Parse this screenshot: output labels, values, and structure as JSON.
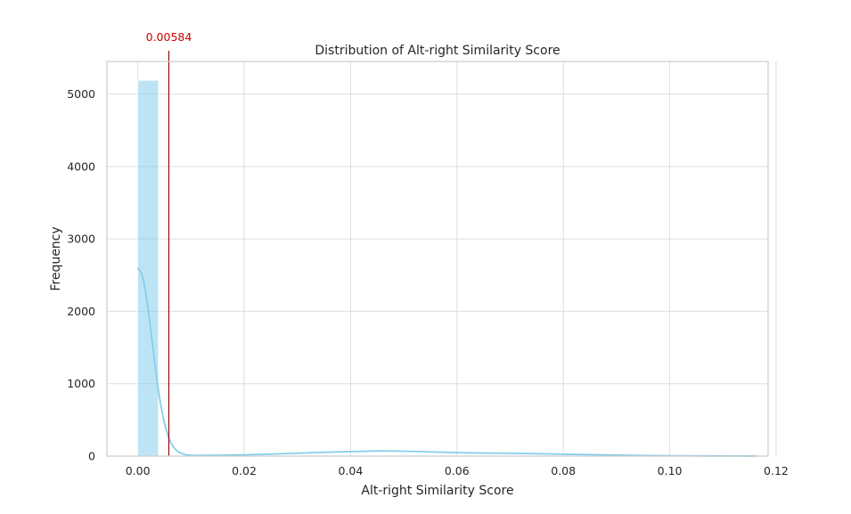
{
  "chart_data": {
    "type": "bar",
    "title": "Distribution of Alt-right Similarity Score",
    "xlabel": "Alt-right Similarity Score",
    "ylabel": "Frequency",
    "xlim": [
      -0.0058,
      0.1185
    ],
    "ylim": [
      0,
      5450
    ],
    "grid": true,
    "xticks": [
      0.0,
      0.02,
      0.04,
      0.06,
      0.08,
      0.1,
      0.12
    ],
    "xtick_labels": [
      "0.00",
      "0.02",
      "0.04",
      "0.06",
      "0.08",
      "0.10",
      "0.12"
    ],
    "yticks": [
      0,
      1000,
      2000,
      3000,
      4000,
      5000
    ],
    "ytick_labels": [
      "0",
      "1000",
      "2000",
      "3000",
      "4000",
      "5000"
    ],
    "bars": [
      {
        "x0": 0.0,
        "x1": 0.0039,
        "value": 5190
      }
    ],
    "kde": {
      "x": [
        0.0,
        0.001,
        0.002,
        0.003,
        0.004,
        0.005,
        0.006,
        0.007,
        0.008,
        0.009,
        0.01,
        0.012,
        0.015,
        0.02,
        0.025,
        0.03,
        0.035,
        0.04,
        0.045,
        0.05,
        0.055,
        0.06,
        0.065,
        0.07,
        0.075,
        0.08,
        0.085,
        0.09,
        0.095,
        0.1,
        0.105,
        0.11,
        0.1165
      ],
      "y": [
        2600,
        2450,
        2000,
        1400,
        850,
        460,
        220,
        100,
        45,
        20,
        12,
        10,
        12,
        18,
        28,
        40,
        52,
        62,
        70,
        68,
        58,
        48,
        42,
        38,
        33,
        26,
        20,
        14,
        9,
        5,
        3,
        2,
        1
      ]
    },
    "colors": {
      "bar": "#87ceeb",
      "kde": "#87ceeb",
      "vline": "#8b0000",
      "annotation": "#cc0000",
      "grid": "#dddddd"
    },
    "vline": {
      "x": 0.00584,
      "label": "0.00584"
    }
  }
}
